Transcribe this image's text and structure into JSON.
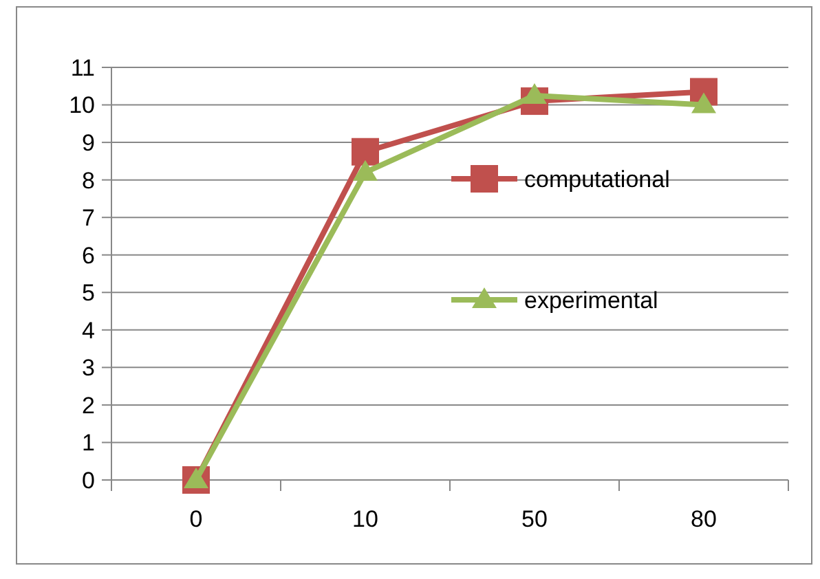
{
  "chart_data": {
    "type": "line",
    "categories": [
      "0",
      "10",
      "50",
      "80"
    ],
    "series": [
      {
        "name": "computational",
        "color": "#c0504d",
        "marker": "square",
        "values": [
          0,
          8.75,
          10.1,
          10.35
        ]
      },
      {
        "name": "experimental",
        "color": "#9bbb59",
        "marker": "triangle",
        "values": [
          0,
          8.2,
          10.25,
          10.0
        ]
      }
    ],
    "ylim": [
      0,
      11
    ],
    "yticks": [
      0,
      1,
      2,
      3,
      4,
      5,
      6,
      7,
      8,
      9,
      10,
      11
    ],
    "grid": "y",
    "legend": "right"
  }
}
